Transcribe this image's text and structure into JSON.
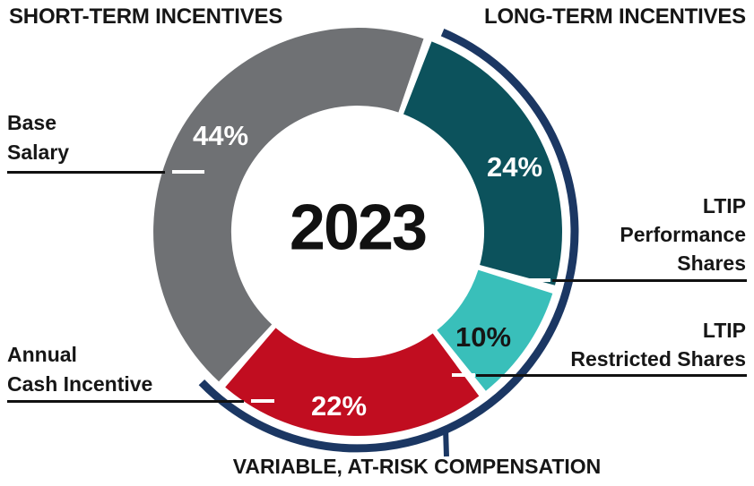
{
  "page": {
    "header_left": "SHORT-TERM INCENTIVES",
    "header_right": "LONG-TERM INCENTIVES",
    "footer_label": "VARIABLE, AT-RISK COMPENSATION",
    "background_color": "#FFFFFF",
    "text_color": "#161616"
  },
  "chart_data": {
    "type": "pie",
    "donut": true,
    "center_label": "2023",
    "start_angle_deg": 20,
    "legend_position": "callouts",
    "slices": [
      {
        "label": "LTIP Performance Shares",
        "value": 24,
        "pct_label": "24%",
        "color": "#0C525C",
        "pct_text_color": "#FFFFFF",
        "group": "LONG-TERM INCENTIVES"
      },
      {
        "label": "LTIP Restricted Shares",
        "value": 10,
        "pct_label": "10%",
        "color": "#39BFBA",
        "pct_text_color": "#161616",
        "group": "LONG-TERM INCENTIVES"
      },
      {
        "label": "Annual Cash Incentive",
        "value": 22,
        "pct_label": "22%",
        "color": "#C10D20",
        "pct_text_color": "#FFFFFF",
        "group": "SHORT-TERM INCENTIVES"
      },
      {
        "label": "Base Salary",
        "value": 44,
        "pct_label": "44%",
        "color": "#6F7174",
        "pct_text_color": "#FFFFFF",
        "group": "SHORT-TERM INCENTIVES"
      }
    ],
    "outer_arc": {
      "label": "VARIABLE, AT-RISK COMPENSATION",
      "color": "#1B3763",
      "covers": [
        "LTIP Performance Shares",
        "LTIP Restricted Shares",
        "Annual Cash Incentive"
      ],
      "covers_total_pct": 56
    }
  },
  "callouts": {
    "base_salary": {
      "lines": [
        "Base",
        "Salary"
      ]
    },
    "annual_cash_incentive": {
      "lines": [
        "Annual",
        "Cash Incentive"
      ]
    },
    "ltip_performance_shares": {
      "lines": [
        "LTIP",
        "Performance",
        "Shares"
      ]
    },
    "ltip_restricted_shares": {
      "lines": [
        "LTIP",
        "Restricted Shares"
      ]
    }
  }
}
